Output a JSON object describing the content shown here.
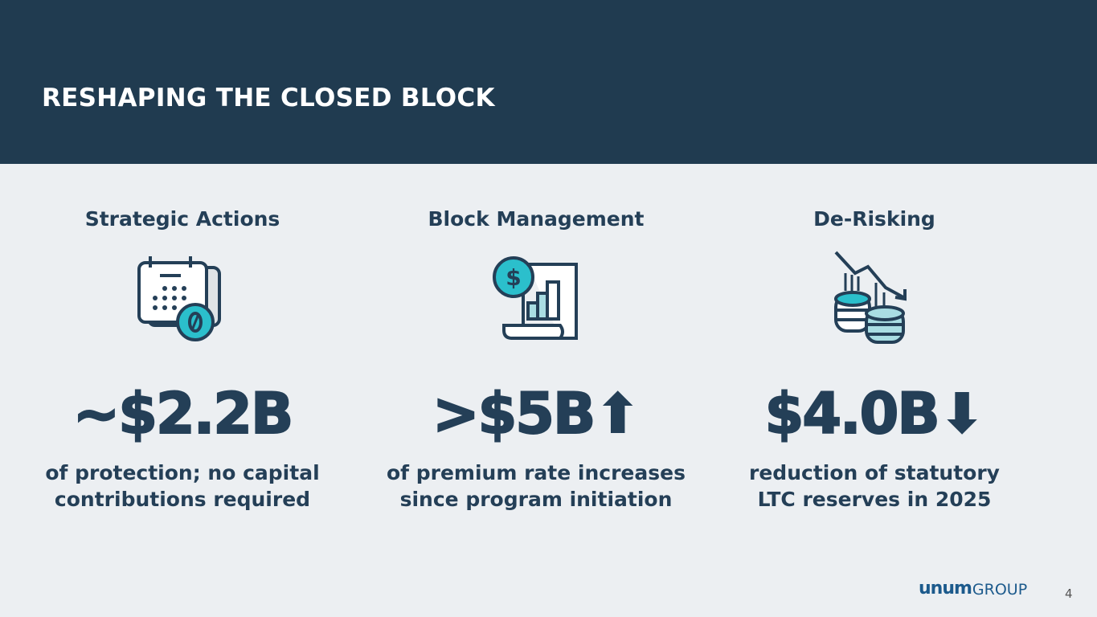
{
  "header": {
    "title": "RESHAPING THE CLOSED BLOCK"
  },
  "columns": [
    {
      "heading": "Strategic Actions",
      "icon": "calendar-zero-icon",
      "value": "~$2.2B",
      "desc_line1": "of protection; no capital",
      "desc_line2": "contributions required"
    },
    {
      "heading": "Block Management",
      "icon": "dollar-chart-document-icon",
      "value": ">$5B",
      "value_arrow": "arrow-up",
      "desc_line1": "of premium rate increases",
      "desc_line2": "since program initiation"
    },
    {
      "heading": "De-Risking",
      "icon": "declining-coins-icon",
      "value": "$4.0B",
      "value_arrow": "arrow-down",
      "desc_line1": "reduction of statutory",
      "desc_line2": "LTC reserves in 2025"
    }
  ],
  "footer": {
    "logo_text": "unum GROUP",
    "page_number": "4"
  },
  "colors": {
    "header": "#203b50",
    "text": "#243f57",
    "accent": "#2bbfcc",
    "background": "#eceff2"
  }
}
